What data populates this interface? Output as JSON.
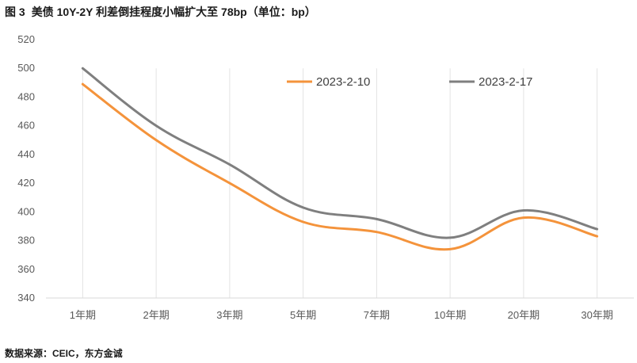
{
  "header": {
    "figure_label": "图 3",
    "title": "美债 10Y-2Y 利差倒挂程度小幅扩大至 78bp（单位：bp）"
  },
  "footer": {
    "source": "数据来源：CEIC，东方金诚"
  },
  "chart_data": {
    "type": "line",
    "title": "美债 10Y-2Y 利差倒挂程度小幅扩大至 78bp（单位：bp）",
    "xlabel": "",
    "ylabel": "",
    "categories": [
      "1年期",
      "2年期",
      "3年期",
      "5年期",
      "7年期",
      "10年期",
      "20年期",
      "30年期"
    ],
    "ylim": [
      340,
      520
    ],
    "yticks": [
      340,
      360,
      380,
      400,
      420,
      440,
      460,
      480,
      500,
      520
    ],
    "vertical_gridlines": true,
    "legend_position": "top-right",
    "series": [
      {
        "name": "2023-2-10",
        "color": "#F4933B",
        "values": [
          489,
          450,
          420,
          393,
          386,
          374,
          396,
          383
        ]
      },
      {
        "name": "2023-2-17",
        "color": "#7F7F7F",
        "values": [
          500,
          460,
          433,
          403,
          395,
          382,
          401,
          388
        ]
      }
    ]
  }
}
